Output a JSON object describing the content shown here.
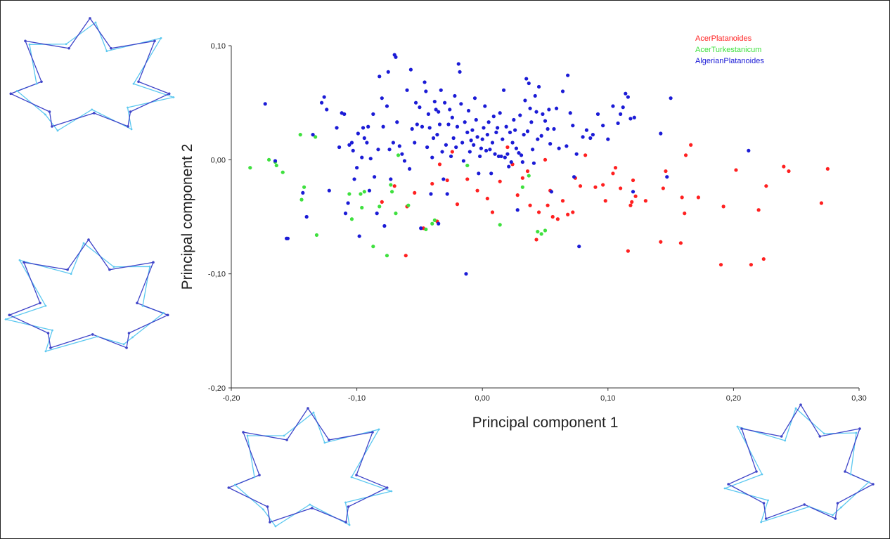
{
  "chart_data": {
    "type": "scatter",
    "title": "",
    "xlabel": "Principal component 1",
    "ylabel": "Principal component 2",
    "xlim": [
      -0.2,
      0.3
    ],
    "ylim": [
      -0.2,
      0.1
    ],
    "x_ticks": [
      "-0,20",
      "-0,10",
      "0,00",
      "0,10",
      "0,20",
      "0,30"
    ],
    "y_ticks": [
      "0,10",
      "0,00",
      "-0,10",
      "-0,20"
    ],
    "grid": false,
    "legend_position": "top-right",
    "series": [
      {
        "name": "AcerPlatanoides",
        "color": "#ff2020",
        "points": [
          [
            -0.061,
            -0.084
          ],
          [
            -0.06,
            -0.041
          ],
          [
            -0.054,
            -0.029
          ],
          [
            -0.047,
            -0.06
          ],
          [
            -0.04,
            -0.021
          ],
          [
            -0.036,
            -0.054
          ],
          [
            -0.034,
            -0.004
          ],
          [
            -0.028,
            -0.018
          ],
          [
            -0.024,
            0.007
          ],
          [
            -0.02,
            -0.039
          ],
          [
            -0.012,
            -0.017
          ],
          [
            -0.004,
            -0.027
          ],
          [
            0.004,
            -0.034
          ],
          [
            0.008,
            -0.046
          ],
          [
            0.014,
            -0.019
          ],
          [
            0.02,
            0.011
          ],
          [
            0.024,
            -0.004
          ],
          [
            0.028,
            -0.031
          ],
          [
            0.032,
            -0.016
          ],
          [
            0.036,
            -0.01
          ],
          [
            0.038,
            -0.04
          ],
          [
            0.043,
            -0.07
          ],
          [
            0.045,
            -0.046
          ],
          [
            0.05,
            0.0
          ],
          [
            0.052,
            -0.04
          ],
          [
            0.054,
            -0.027
          ],
          [
            0.056,
            -0.05
          ],
          [
            0.06,
            -0.052
          ],
          [
            0.064,
            -0.036
          ],
          [
            0.068,
            -0.048
          ],
          [
            0.072,
            -0.046
          ],
          [
            0.074,
            -0.016
          ],
          [
            0.078,
            -0.023
          ],
          [
            0.082,
            0.004
          ],
          [
            0.09,
            -0.024
          ],
          [
            0.096,
            -0.022
          ],
          [
            0.098,
            -0.036
          ],
          [
            0.104,
            -0.012
          ],
          [
            0.106,
            -0.007
          ],
          [
            0.11,
            -0.025
          ],
          [
            0.116,
            -0.08
          ],
          [
            0.118,
            -0.04
          ],
          [
            0.119,
            -0.037
          ],
          [
            0.12,
            -0.018
          ],
          [
            0.122,
            -0.032
          ],
          [
            0.13,
            -0.036
          ],
          [
            0.142,
            -0.072
          ],
          [
            0.144,
            -0.025
          ],
          [
            0.146,
            -0.01
          ],
          [
            0.158,
            -0.073
          ],
          [
            0.159,
            -0.033
          ],
          [
            0.161,
            -0.047
          ],
          [
            0.162,
            0.004
          ],
          [
            0.166,
            0.013
          ],
          [
            0.172,
            -0.033
          ],
          [
            0.19,
            -0.092
          ],
          [
            0.192,
            -0.041
          ],
          [
            0.202,
            -0.009
          ],
          [
            0.214,
            -0.092
          ],
          [
            0.22,
            -0.044
          ],
          [
            0.224,
            -0.087
          ],
          [
            0.226,
            -0.023
          ],
          [
            0.24,
            -0.006
          ],
          [
            0.244,
            -0.01
          ],
          [
            0.27,
            -0.038
          ],
          [
            0.275,
            -0.008
          ],
          [
            -0.08,
            -0.037
          ],
          [
            -0.07,
            -0.023
          ]
        ]
      },
      {
        "name": "AcerTurkestanicum",
        "color": "#3ee03e",
        "points": [
          [
            -0.185,
            -0.007
          ],
          [
            -0.165,
            -0.002
          ],
          [
            -0.164,
            -0.005
          ],
          [
            -0.159,
            -0.011
          ],
          [
            -0.145,
            0.022
          ],
          [
            -0.144,
            -0.035
          ],
          [
            -0.142,
            -0.024
          ],
          [
            -0.133,
            0.02
          ],
          [
            -0.132,
            -0.066
          ],
          [
            -0.106,
            -0.03
          ],
          [
            -0.104,
            -0.052
          ],
          [
            -0.097,
            -0.03
          ],
          [
            -0.096,
            -0.042
          ],
          [
            -0.094,
            -0.028
          ],
          [
            -0.087,
            -0.076
          ],
          [
            -0.082,
            -0.041
          ],
          [
            -0.076,
            -0.084
          ],
          [
            -0.073,
            -0.022
          ],
          [
            -0.072,
            -0.028
          ],
          [
            -0.069,
            -0.047
          ],
          [
            -0.067,
            0.004
          ],
          [
            -0.059,
            -0.04
          ],
          [
            -0.045,
            -0.061
          ],
          [
            -0.04,
            -0.056
          ],
          [
            -0.038,
            -0.053
          ],
          [
            -0.012,
            -0.005
          ],
          [
            0.014,
            -0.057
          ],
          [
            0.032,
            -0.024
          ],
          [
            0.037,
            -0.014
          ],
          [
            0.044,
            -0.063
          ],
          [
            0.047,
            -0.065
          ],
          [
            0.05,
            -0.062
          ],
          [
            -0.17,
            0.0
          ]
        ]
      },
      {
        "name": "AlgerianPlatanoides",
        "color": "#1b1bd6",
        "points": [
          [
            -0.173,
            0.049
          ],
          [
            -0.165,
            -0.001
          ],
          [
            -0.155,
            -0.069
          ],
          [
            -0.143,
            -0.029
          ],
          [
            -0.14,
            -0.05
          ],
          [
            -0.135,
            0.022
          ],
          [
            -0.128,
            0.05
          ],
          [
            -0.126,
            0.055
          ],
          [
            -0.124,
            0.044
          ],
          [
            -0.122,
            -0.027
          ],
          [
            -0.116,
            0.028
          ],
          [
            -0.114,
            0.011
          ],
          [
            -0.112,
            0.041
          ],
          [
            -0.11,
            0.04
          ],
          [
            -0.109,
            -0.047
          ],
          [
            -0.107,
            -0.038
          ],
          [
            -0.106,
            0.013
          ],
          [
            -0.104,
            0.015
          ],
          [
            -0.103,
            0.008
          ],
          [
            -0.102,
            -0.017
          ],
          [
            -0.1,
            -0.007
          ],
          [
            -0.099,
            0.023
          ],
          [
            -0.098,
            -0.067
          ],
          [
            -0.096,
            0.002
          ],
          [
            -0.095,
            0.028
          ],
          [
            -0.094,
            0.019
          ],
          [
            -0.092,
            0.015
          ],
          [
            -0.091,
            0.029
          ],
          [
            -0.09,
            -0.027
          ],
          [
            -0.089,
            0.001
          ],
          [
            -0.087,
            0.04
          ],
          [
            -0.086,
            -0.015
          ],
          [
            -0.084,
            -0.047
          ],
          [
            -0.083,
            0.009
          ],
          [
            -0.082,
            0.073
          ],
          [
            -0.08,
            0.054
          ],
          [
            -0.079,
            0.029
          ],
          [
            -0.078,
            -0.058
          ],
          [
            -0.076,
            0.047
          ],
          [
            -0.075,
            0.077
          ],
          [
            -0.074,
            0.009
          ],
          [
            -0.073,
            -0.017
          ],
          [
            -0.071,
            0.015
          ],
          [
            -0.07,
            0.092
          ],
          [
            -0.069,
            0.09
          ],
          [
            -0.068,
            0.033
          ],
          [
            -0.066,
            0.012
          ],
          [
            -0.064,
            0.005
          ],
          [
            -0.062,
            -0.001
          ],
          [
            -0.06,
            0.061
          ],
          [
            -0.058,
            -0.008
          ],
          [
            -0.057,
            0.079
          ],
          [
            -0.056,
            0.027
          ],
          [
            -0.054,
            0.015
          ],
          [
            -0.053,
            0.05
          ],
          [
            -0.052,
            0.031
          ],
          [
            -0.05,
            0.046
          ],
          [
            -0.049,
            -0.06
          ],
          [
            -0.048,
            0.029
          ],
          [
            -0.046,
            0.068
          ],
          [
            -0.045,
            0.06
          ],
          [
            -0.044,
            0.011
          ],
          [
            -0.043,
            0.04
          ],
          [
            -0.042,
            0.028
          ],
          [
            -0.041,
            -0.03
          ],
          [
            -0.04,
            0.002
          ],
          [
            -0.039,
            0.019
          ],
          [
            -0.038,
            0.051
          ],
          [
            -0.037,
            0.044
          ],
          [
            -0.036,
            0.022
          ],
          [
            -0.035,
            0.042
          ],
          [
            -0.034,
            0.031
          ],
          [
            -0.033,
            0.061
          ],
          [
            -0.032,
            0.007
          ],
          [
            -0.031,
            -0.017
          ],
          [
            -0.03,
            0.05
          ],
          [
            -0.029,
            0.013
          ],
          [
            -0.028,
            -0.03
          ],
          [
            -0.027,
            0.031
          ],
          [
            -0.026,
            0.044
          ],
          [
            -0.025,
            0.003
          ],
          [
            -0.024,
            0.037
          ],
          [
            -0.023,
            0.019
          ],
          [
            -0.022,
            0.056
          ],
          [
            -0.021,
            0.011
          ],
          [
            -0.02,
            0.029
          ],
          [
            -0.019,
            0.084
          ],
          [
            -0.018,
            0.077
          ],
          [
            -0.017,
            0.049
          ],
          [
            -0.016,
            0.015
          ],
          [
            -0.015,
            -0.001
          ],
          [
            -0.014,
            0.033
          ],
          [
            -0.013,
            -0.1
          ],
          [
            -0.012,
            0.024
          ],
          [
            -0.011,
            0.043
          ],
          [
            -0.01,
            0.007
          ],
          [
            -0.009,
            0.017
          ],
          [
            -0.008,
            0.026
          ],
          [
            -0.007,
            0.013
          ],
          [
            -0.006,
            0.054
          ],
          [
            -0.005,
            0.035
          ],
          [
            -0.004,
            0.02
          ],
          [
            -0.003,
            -0.012
          ],
          [
            -0.002,
            0.003
          ],
          [
            -0.001,
            0.01
          ],
          [
            0.0,
            0.018
          ],
          [
            0.001,
            0.028
          ],
          [
            0.002,
            0.047
          ],
          [
            0.003,
            0.008
          ],
          [
            0.004,
            0.022
          ],
          [
            0.005,
            0.033
          ],
          [
            0.006,
            0.009
          ],
          [
            0.007,
            -0.012
          ],
          [
            0.008,
            0.015
          ],
          [
            0.009,
            0.038
          ],
          [
            0.01,
            0.005
          ],
          [
            0.011,
            0.024
          ],
          [
            0.012,
            0.028
          ],
          [
            0.013,
            0.003
          ],
          [
            0.014,
            0.041
          ],
          [
            0.015,
            0.003
          ],
          [
            0.016,
            0.018
          ],
          [
            0.017,
            0.061
          ],
          [
            0.018,
            0.002
          ],
          [
            0.019,
            0.029
          ],
          [
            0.02,
            0.005
          ],
          [
            0.021,
            -0.006
          ],
          [
            0.022,
            0.024
          ],
          [
            0.023,
            -0.002
          ],
          [
            0.024,
            0.015
          ],
          [
            0.025,
            0.035
          ],
          [
            0.026,
            0.026
          ],
          [
            0.027,
            0.01
          ],
          [
            0.028,
            -0.044
          ],
          [
            0.029,
            0.006
          ],
          [
            0.03,
            0.039
          ],
          [
            0.031,
            0.004
          ],
          [
            0.032,
            -0.002
          ],
          [
            0.033,
            0.022
          ],
          [
            0.034,
            0.052
          ],
          [
            0.035,
            0.071
          ],
          [
            0.036,
            0.025
          ],
          [
            0.037,
            0.067
          ],
          [
            0.038,
            0.045
          ],
          [
            0.039,
            0.033
          ],
          [
            0.04,
            0.009
          ],
          [
            0.041,
            -0.003
          ],
          [
            0.042,
            0.056
          ],
          [
            0.043,
            0.042
          ],
          [
            0.044,
            0.018
          ],
          [
            0.045,
            0.064
          ],
          [
            0.047,
            0.021
          ],
          [
            0.048,
            0.04
          ],
          [
            0.05,
            0.034
          ],
          [
            0.052,
            0.027
          ],
          [
            0.053,
            0.044
          ],
          [
            0.054,
            0.014
          ],
          [
            0.055,
            -0.028
          ],
          [
            0.057,
            0.027
          ],
          [
            0.059,
            0.045
          ],
          [
            0.061,
            0.01
          ],
          [
            0.064,
            0.06
          ],
          [
            0.067,
            0.012
          ],
          [
            0.068,
            0.074
          ],
          [
            0.07,
            0.041
          ],
          [
            0.072,
            0.03
          ],
          [
            0.073,
            -0.015
          ],
          [
            0.075,
            0.005
          ],
          [
            0.077,
            -0.076
          ],
          [
            0.08,
            0.02
          ],
          [
            0.083,
            0.026
          ],
          [
            0.086,
            0.019
          ],
          [
            0.088,
            0.022
          ],
          [
            0.092,
            0.04
          ],
          [
            0.096,
            0.03
          ],
          [
            0.1,
            0.018
          ],
          [
            0.104,
            0.047
          ],
          [
            0.108,
            0.032
          ],
          [
            0.11,
            0.04
          ],
          [
            0.112,
            0.046
          ],
          [
            0.114,
            0.058
          ],
          [
            0.116,
            0.055
          ],
          [
            0.118,
            0.036
          ],
          [
            0.12,
            -0.028
          ],
          [
            0.121,
            0.037
          ],
          [
            0.142,
            0.023
          ],
          [
            0.147,
            -0.015
          ],
          [
            0.15,
            0.054
          ],
          [
            0.212,
            0.008
          ],
          [
            -0.156,
            -0.069
          ],
          [
            -0.035,
            -0.056
          ]
        ]
      }
    ]
  },
  "shape_colors": {
    "consensus": "#3f45c9",
    "deformed": "#5cc8f0"
  }
}
